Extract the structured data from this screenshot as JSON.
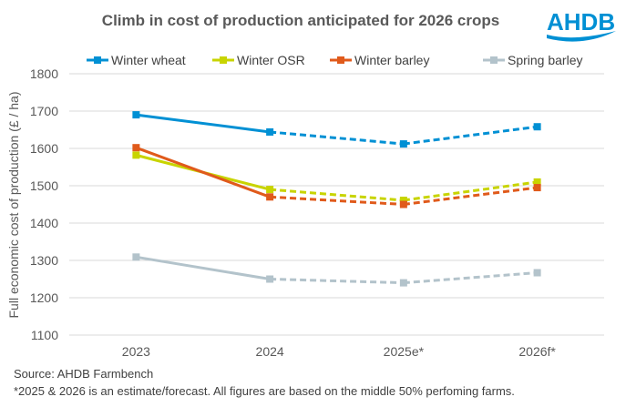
{
  "logo": {
    "text": "AHDB",
    "color": "#0090d4"
  },
  "chart_data": {
    "type": "line",
    "title": "Climb in cost of production anticipated for 2026 crops",
    "xlabel": "",
    "ylabel": "Full economic cost of production (£ / ha)",
    "categories": [
      "2023",
      "2024",
      "2025e*",
      "2026f*"
    ],
    "ylim": [
      1100,
      1800
    ],
    "yticks": [
      1100,
      1200,
      1300,
      1400,
      1500,
      1600,
      1700,
      1800
    ],
    "grid": true,
    "legend": "top",
    "dashed_from": "2024",
    "series": [
      {
        "name": "Winter wheat",
        "color": "#0090d4",
        "values": [
          1690,
          1644,
          1612,
          1658
        ]
      },
      {
        "name": "Winter OSR",
        "color": "#c8d400",
        "values": [
          1582,
          1490,
          1461,
          1510
        ]
      },
      {
        "name": "Winter barley",
        "color": "#e05a1b",
        "values": [
          1602,
          1470,
          1450,
          1495
        ]
      },
      {
        "name": "Spring barley",
        "color": "#b3c3cb",
        "values": [
          1309,
          1250,
          1240,
          1267
        ]
      }
    ]
  },
  "notes": {
    "source": "Source: AHDB Farmbench",
    "footnote": "*2025 & 2026 is an estimate/forecast. All figures are based on the middle 50% perfoming farms."
  }
}
